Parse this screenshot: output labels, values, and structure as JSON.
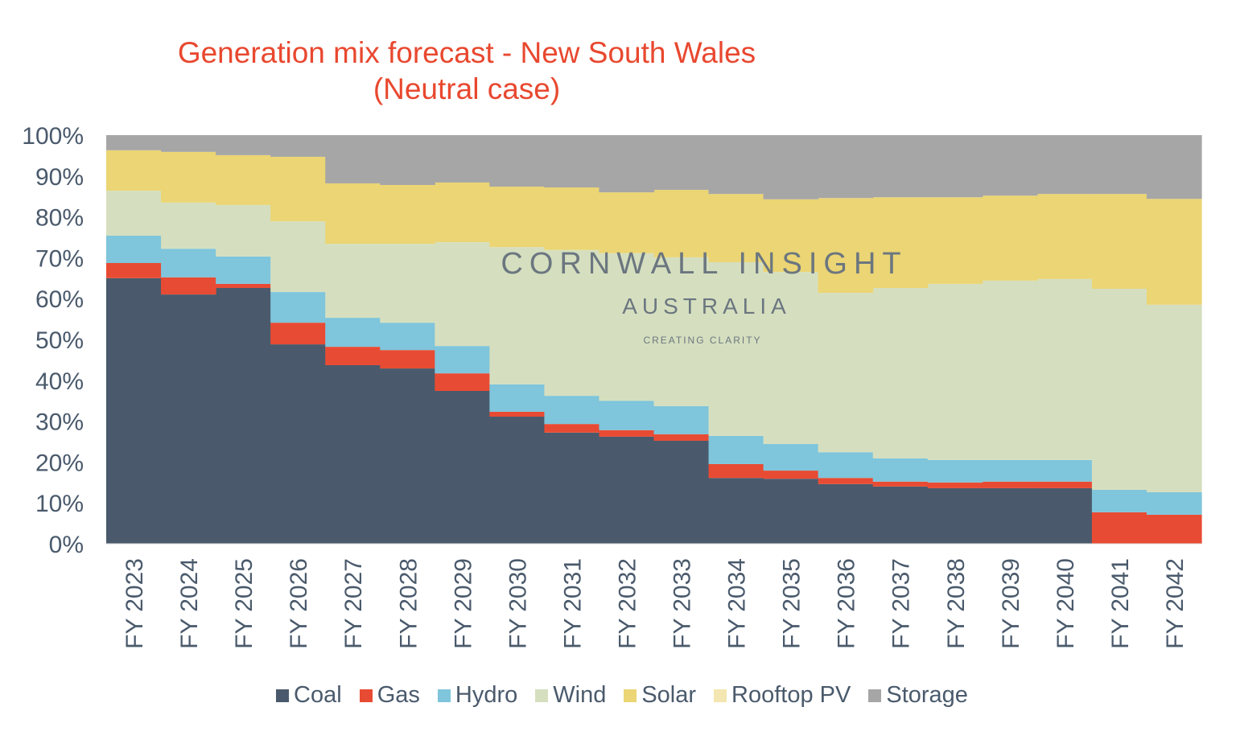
{
  "chart_data": {
    "type": "area",
    "subtype": "stacked-100-step",
    "title": "Generation mix forecast - New South Wales",
    "subtitle": "(Neutral case)",
    "xlabel": "",
    "ylabel": "",
    "ylim": [
      0,
      100
    ],
    "yticks": [
      "0%",
      "10%",
      "20%",
      "30%",
      "40%",
      "50%",
      "60%",
      "70%",
      "80%",
      "90%",
      "100%"
    ],
    "grid": false,
    "legend_position": "bottom",
    "categories": [
      "FY 2023",
      "FY 2024",
      "FY 2025",
      "FY 2026",
      "FY 2027",
      "FY 2028",
      "FY 2029",
      "FY 2030",
      "FY 2031",
      "FY 2032",
      "FY 2033",
      "FY 2034",
      "FY 2035",
      "FY 2036",
      "FY 2037",
      "FY 2038",
      "FY 2039",
      "FY 2040",
      "FY 2041",
      "FY 2042"
    ],
    "series": [
      {
        "name": "Coal",
        "color": "#4a5a6c",
        "values": [
          65.0,
          61.0,
          62.6,
          48.8,
          43.7,
          42.9,
          37.4,
          31.1,
          27.2,
          26.2,
          25.2,
          16.1,
          15.9,
          14.6,
          14.0,
          13.6,
          13.6,
          13.6,
          0,
          0
        ]
      },
      {
        "name": "Gas",
        "color": "#e84b33",
        "values": [
          3.7,
          4.2,
          1.0,
          5.3,
          4.5,
          4.5,
          4.3,
          1.2,
          2.1,
          1.6,
          1.6,
          3.4,
          2.0,
          1.5,
          1.2,
          1.4,
          1.6,
          1.6,
          7.7,
          7.1
        ]
      },
      {
        "name": "Hydro",
        "color": "#7fc5db",
        "values": [
          6.7,
          7.0,
          6.7,
          7.5,
          7.1,
          6.7,
          6.7,
          6.7,
          6.9,
          7.2,
          6.9,
          6.9,
          6.5,
          6.3,
          5.7,
          5.5,
          5.3,
          5.3,
          5.5,
          5.5
        ]
      },
      {
        "name": "Wind",
        "color": "#d5dfbf",
        "values": [
          11.0,
          11.3,
          12.6,
          17.3,
          18.1,
          19.3,
          25.4,
          33.6,
          35.7,
          36.1,
          36.4,
          42.5,
          42.1,
          39.0,
          41.7,
          43.1,
          43.9,
          44.3,
          49.2,
          45.9
        ]
      },
      {
        "name": "Solar",
        "color": "#ebd574",
        "values": [
          9.9,
          12.4,
          12.2,
          15.8,
          14.8,
          14.4,
          14.6,
          14.8,
          15.3,
          14.9,
          16.5,
          16.7,
          17.8,
          23.2,
          22.2,
          21.2,
          20.8,
          20.8,
          23.2,
          25.9
        ]
      },
      {
        "name": "Rooftop PV",
        "color": "#f3e6b0",
        "values": [
          0,
          0,
          0,
          0,
          0,
          0,
          0,
          0,
          0,
          0,
          0,
          0,
          0,
          0,
          0,
          0,
          0,
          0,
          0,
          0
        ]
      },
      {
        "name": "Storage",
        "color": "#a6a6a6",
        "values": [
          3.7,
          4.1,
          4.9,
          5.3,
          11.8,
          12.2,
          11.6,
          12.6,
          12.8,
          14.0,
          13.4,
          14.4,
          15.7,
          15.4,
          15.2,
          15.2,
          14.8,
          14.4,
          14.4,
          15.6
        ]
      }
    ]
  },
  "watermark": {
    "line1": "CORNWALL INSIGHT",
    "line2": "AUSTRALIA",
    "line3": "CREATING CLARITY"
  }
}
